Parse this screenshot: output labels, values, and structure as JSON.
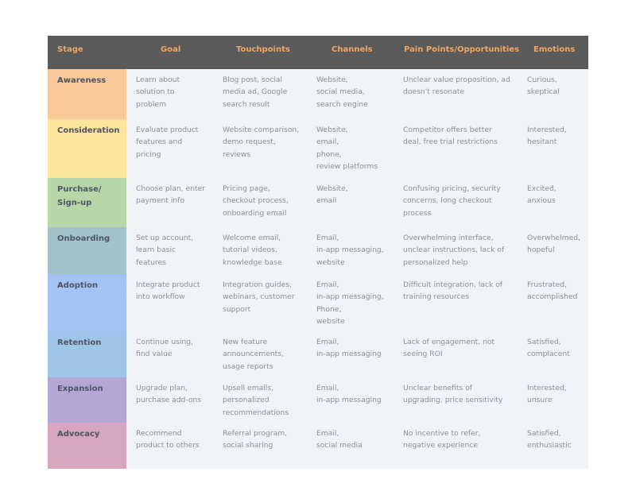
{
  "headers": {
    "stage": "Stage",
    "goal": "Goal",
    "touchpoints": "Touchpoints",
    "channels": "Channels",
    "pain_points": "Pain Points/Opportunities",
    "emotions": "Emotions"
  },
  "colors": {
    "header_bg": "#5a5a5a",
    "header_text": "#f1a661",
    "body_bg": "#f0f3f8",
    "stage_text": "#4e5463",
    "cell_text": "#8a8f99"
  },
  "stages": [
    {
      "name": "Awareness",
      "color": "#f8c99a",
      "goal": "Learn about\nsolution to\nproblem",
      "touchpoints": "Blog post, social\nmedia ad, Google\nsearch result",
      "channels": "Website,\nsocial media,\nsearch engine",
      "pain_points": "Unclear value proposition, ad\ndoesn't resonate",
      "emotions": "Curious,\nskeptical"
    },
    {
      "name": "Consideration",
      "color": "#fce49b",
      "goal": "Evaluate product\nfeatures and\npricing",
      "touchpoints": "Website comparison,\ndemo request,\nreviews",
      "channels": "Website,\nemail,\nphone,\nreview platforms",
      "pain_points": "Competitor offers better\ndeal, free trial restrictions",
      "emotions": "Interested,\nhesitant"
    },
    {
      "name": "Purchase/\nSign-up",
      "color": "#b7d7a8",
      "goal": "Choose plan, enter\npayment info",
      "touchpoints": "Pricing page,\ncheckout process,\nonboarding email",
      "channels": "Website,\nemail",
      "pain_points": "Confusing pricing, security\nconcerns, long checkout\nprocess",
      "emotions": "Excited,\nanxious"
    },
    {
      "name": "Onboarding",
      "color": "#a2c4c9",
      "goal": "Set up account,\nlearn basic\nfeatures",
      "touchpoints": "Welcome email,\ntutorial videos,\nknowledge base",
      "channels": "Email,\nin-app messaging,\nwebsite",
      "pain_points": "Overwhelming interface,\nunclear instructions, lack of\npersonalized help",
      "emotions": "Overwhelmed,\nhopeful"
    },
    {
      "name": "Adoption",
      "color": "#a4c2f4",
      "goal": "Integrate product\ninto workflow",
      "touchpoints": "Integration guides,\nwebinars, customer\nsupport",
      "channels": "Email,\nin-app messaging,\nPhone,\nwebsite",
      "pain_points": "Difficult integration, lack of\ntraining resources",
      "emotions": "Frustrated,\naccomplished"
    },
    {
      "name": "Retention",
      "color": "#9fc5e8",
      "goal": "Continue using,\n find value",
      "touchpoints": "New feature\nannouncements,\nusage reports",
      "channels": "Email,\nin-app messaging",
      "pain_points": "Lack of engagement, not\nseeing ROI",
      "emotions": "Satisfied,\ncomplacent"
    },
    {
      "name": "Expansion",
      "color": "#b4a7d6",
      "goal": "Upgrade plan,\npurchase add-ons",
      "touchpoints": "Upsell emails,\npersonalized\nrecommendations",
      "channels": "Email,\nin-app messaging",
      "pain_points": "Unclear benefits of\nupgrading, price sensitivity",
      "emotions": "Interested,\nunsure"
    },
    {
      "name": "Advocacy",
      "color": "#d5a6bd",
      "goal": "Recommend\nproduct to others",
      "touchpoints": "Referral program,\nsocial sharing",
      "channels": "Email,\nsocial media",
      "pain_points": "No incentive to refer,\nnegative experience",
      "emotions": "Satisfied,\nenthusiastic"
    }
  ]
}
